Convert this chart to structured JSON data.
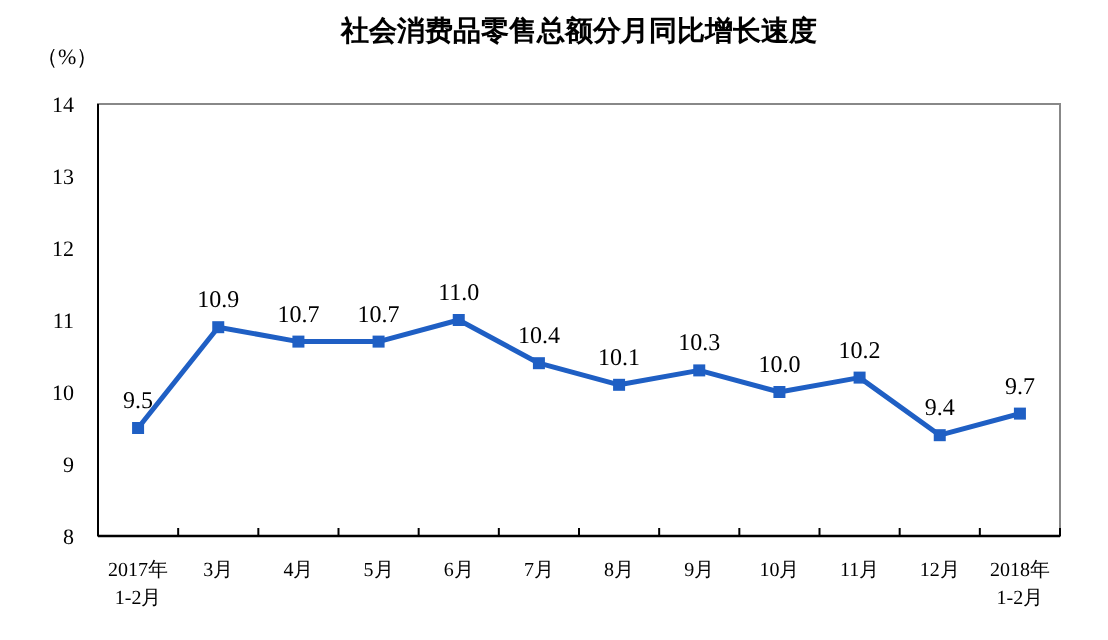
{
  "chart_data": {
    "type": "line",
    "title": "社会消费品零售总额分月同比增长速度",
    "ylabel": "（%）",
    "categories": [
      "2017年\n1-2月",
      "3月",
      "4月",
      "5月",
      "6月",
      "7月",
      "8月",
      "9月",
      "10月",
      "11月",
      "12月",
      "2018年\n1-2月"
    ],
    "series": [
      {
        "color": "#1f5fc4",
        "values": [
          9.5,
          10.9,
          10.7,
          10.7,
          11.0,
          10.4,
          10.1,
          10.3,
          10.0,
          10.2,
          9.4,
          9.7
        ],
        "value_labels": [
          "9.5",
          "10.9",
          "10.7",
          "10.7",
          "11.0",
          "10.4",
          "10.1",
          "10.3",
          "10.0",
          "10.2",
          "9.4",
          "9.7"
        ]
      }
    ],
    "ylim": [
      8,
      14
    ],
    "yticks": [
      8,
      9,
      10,
      11,
      12,
      13,
      14
    ],
    "grid": false,
    "marker": "square",
    "line_style": "solid"
  }
}
